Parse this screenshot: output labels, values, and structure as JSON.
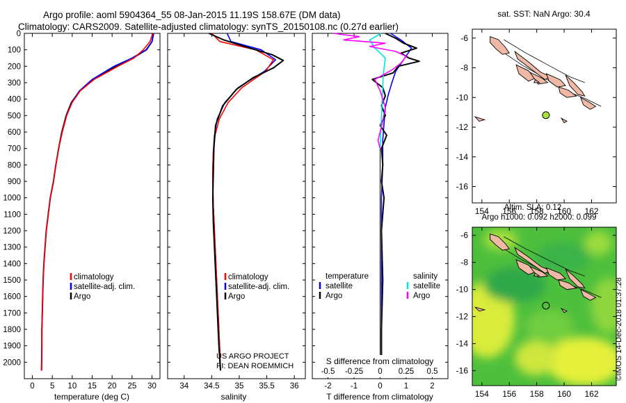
{
  "title_line1": "Argo profile: aoml 5904364_55 08-Jan-2015 11.19S 158.67E (DM data)",
  "title_line2": "Climatology: CARS2009. Satellite-adjusted climatology: synTS_20150108.nc (0.27d earlier)",
  "watermark": "©IMOS 14-Dec-2018 01:37:28",
  "credit_line1": "US ARGO PROJECT",
  "credit_line2": "PI: DEAN ROEMMICH",
  "colors": {
    "argo": "#000000",
    "climatology": "#ff0000",
    "satellite": "#0000ff",
    "sal_satellite": "#00e5e5",
    "sal_argo": "#ff00ff",
    "land": "#f0b9a6",
    "dot": "#a5e33a"
  },
  "chart_data": [
    {
      "id": "temperature",
      "type": "line",
      "xlabel": "temperature (deg C)",
      "ylabel": "",
      "xlim": [
        -2,
        32
      ],
      "ylim": [
        2100,
        0
      ],
      "xticks": [
        0,
        5,
        10,
        15,
        20,
        25,
        30
      ],
      "xtick_labels": [
        "0",
        "5",
        "10",
        "15",
        "20",
        "25",
        "30"
      ],
      "yticks": [
        0,
        100,
        200,
        300,
        400,
        500,
        600,
        700,
        800,
        900,
        1000,
        1100,
        1200,
        1300,
        1400,
        1500,
        1600,
        1700,
        1800,
        1900,
        2000
      ],
      "ytick_labels": [
        "0",
        "100",
        "200",
        "300",
        "400",
        "500",
        "600",
        "700",
        "800",
        "900",
        "1000",
        "1100",
        "1200",
        "1300",
        "1400",
        "1500",
        "1600",
        "1700",
        "1800",
        "1900",
        "2000"
      ],
      "legend": [
        "climatology",
        "satellite-adj. clim.",
        "Argo"
      ],
      "series": [
        {
          "name": "climatology",
          "color": "#ff0000",
          "x": [
            30.2,
            29.5,
            27.8,
            25.5,
            21.5,
            15.5,
            12.0,
            10.0,
            8.6,
            7.5,
            6.6,
            5.9,
            5.3,
            4.5,
            4.0,
            3.5,
            3.2,
            2.9,
            2.7,
            2.6,
            2.5,
            2.4,
            2.4,
            2.3
          ],
          "y": [
            0,
            50,
            100,
            150,
            200,
            280,
            350,
            420,
            500,
            600,
            700,
            800,
            900,
            1000,
            1100,
            1200,
            1300,
            1400,
            1500,
            1600,
            1700,
            1800,
            1900,
            2050
          ]
        },
        {
          "name": "satellite-adj. clim.",
          "color": "#0000ff",
          "x": [
            30.4,
            30.0,
            28.5,
            25.0,
            20.5,
            15.0,
            11.8,
            9.9,
            8.6,
            7.5,
            6.6,
            5.9,
            5.3,
            4.5,
            4.0,
            3.5,
            3.2,
            2.9,
            2.7,
            2.6,
            2.5,
            2.4,
            2.4,
            2.3
          ],
          "y": [
            0,
            50,
            100,
            150,
            200,
            280,
            350,
            420,
            500,
            600,
            700,
            800,
            900,
            1000,
            1100,
            1200,
            1300,
            1400,
            1500,
            1600,
            1700,
            1800,
            1900,
            2050
          ]
        },
        {
          "name": "Argo",
          "color": "#000000",
          "x": [
            30.4,
            30.0,
            28.6,
            25.2,
            21.0,
            15.3,
            11.9,
            9.8,
            8.5,
            7.4,
            6.6,
            5.9,
            5.3,
            4.5,
            4.0,
            3.5,
            3.2,
            2.9,
            2.7,
            2.6,
            2.5,
            2.4,
            2.4,
            2.3
          ],
          "y": [
            0,
            50,
            100,
            150,
            200,
            280,
            350,
            420,
            500,
            600,
            700,
            800,
            900,
            1000,
            1100,
            1200,
            1300,
            1400,
            1500,
            1600,
            1700,
            1800,
            1900,
            2050
          ]
        }
      ]
    },
    {
      "id": "salinity",
      "type": "line",
      "xlabel": "salinity",
      "ylabel": "",
      "xlim": [
        33.7,
        36.2
      ],
      "ylim": [
        2100,
        0
      ],
      "xticks": [
        34,
        34.5,
        35,
        35.5,
        36
      ],
      "xtick_labels": [
        "34",
        "34.5",
        "35",
        "35.5",
        "36"
      ],
      "legend": [
        "climatology",
        "satellite-adj. clim.",
        "Argo"
      ],
      "series": [
        {
          "name": "climatology",
          "color": "#ff0000",
          "x": [
            34.5,
            34.65,
            35.3,
            35.62,
            35.48,
            35.05,
            34.8,
            34.64,
            34.56,
            34.53,
            34.52,
            34.52,
            34.53,
            34.55,
            34.57,
            34.59,
            34.61,
            34.63,
            34.65,
            34.66
          ],
          "y": [
            0,
            50,
            100,
            160,
            230,
            330,
            420,
            520,
            620,
            720,
            820,
            920,
            1050,
            1200,
            1350,
            1500,
            1650,
            1800,
            1950,
            2050
          ]
        },
        {
          "name": "satellite-adj. clim.",
          "color": "#0000ff",
          "x": [
            34.78,
            34.85,
            35.4,
            35.66,
            35.46,
            34.98,
            34.74,
            34.6,
            34.55,
            34.53,
            34.52,
            34.52,
            34.53,
            34.55,
            34.57,
            34.59,
            34.61,
            34.63,
            34.65,
            34.66
          ],
          "y": [
            0,
            50,
            100,
            160,
            230,
            330,
            420,
            520,
            620,
            720,
            820,
            920,
            1050,
            1200,
            1350,
            1500,
            1650,
            1800,
            1950,
            2050
          ]
        },
        {
          "name": "Argo",
          "color": "#000000",
          "x": [
            34.45,
            34.72,
            35.2,
            35.6,
            35.8,
            35.62,
            35.25,
            34.95,
            34.7,
            34.57,
            34.54,
            34.53,
            34.52,
            34.53,
            34.55,
            34.57,
            34.59,
            34.61,
            34.63,
            34.65,
            34.66
          ],
          "y": [
            0,
            40,
            90,
            130,
            165,
            210,
            270,
            340,
            440,
            560,
            700,
            850,
            1000,
            1150,
            1300,
            1450,
            1600,
            1750,
            1900,
            2000,
            2050
          ]
        }
      ]
    },
    {
      "id": "difference",
      "type": "line",
      "xlabel": "T difference from climatology",
      "xlim": [
        -2.6,
        2.6
      ],
      "ylim": [
        2100,
        0
      ],
      "xticks": [
        -2,
        -1,
        0,
        1,
        2
      ],
      "xtick_labels": [
        "-2",
        "-1",
        "0",
        "1",
        "2"
      ],
      "top_axis_label": "S difference from climatology",
      "stick_values": [
        -0.5,
        -0.25,
        0,
        0.25,
        0.5
      ],
      "stick_labels": [
        "-0.5",
        "-0.25",
        "0",
        "0.25",
        "0.5"
      ],
      "legend_left_title": "temperature",
      "legend_right_title": "salinity",
      "legend_left": [
        "satellite",
        "Argo"
      ],
      "legend_right": [
        "satellite",
        "Argo"
      ],
      "series": [
        {
          "name": "T satellite",
          "color": "#0000ff",
          "x": [
            0.4,
            0.8,
            1.2,
            0.9,
            0.6,
            0.45,
            0.3,
            0.2,
            0.15,
            0.1,
            0.1,
            0.05,
            0.05,
            0.05,
            0.05,
            0.05
          ],
          "y": [
            0,
            40,
            90,
            160,
            230,
            300,
            380,
            450,
            550,
            650,
            800,
            1000,
            1300,
            1600,
            1900,
            2050
          ]
        },
        {
          "name": "T Argo",
          "color": "#000000",
          "x": [
            0.2,
            0.6,
            0.9,
            1.4,
            0.8,
            1.1,
            1.5,
            0.7,
            0.5,
            -0.3,
            0.1,
            0.2,
            0.05,
            0.2,
            0.0,
            0.25,
            0.05,
            0.1,
            0.05,
            0.15,
            0.05,
            0.1,
            0.05,
            0.05
          ],
          "y": [
            0,
            30,
            60,
            90,
            120,
            150,
            170,
            200,
            240,
            280,
            330,
            380,
            440,
            500,
            560,
            620,
            700,
            800,
            900,
            1000,
            1200,
            1500,
            1800,
            2050
          ]
        },
        {
          "name": "S satellite",
          "color": "#00e5e5",
          "x": [
            0.01,
            -0.1,
            -0.05,
            0.05,
            0.03,
            0.02,
            0.01,
            0.0
          ],
          "y": [
            0,
            40,
            90,
            150,
            250,
            400,
            550,
            700
          ]
        },
        {
          "name": "S Argo",
          "color": "#ff00ff",
          "x": [
            -0.45,
            -0.2,
            -0.35,
            0.05,
            -0.1,
            0.15,
            0.25,
            0.2,
            0.12,
            -0.05,
            0.0,
            0.05,
            0.02,
            -0.02,
            0.0
          ],
          "y": [
            0,
            20,
            40,
            60,
            80,
            110,
            140,
            180,
            220,
            280,
            350,
            450,
            550,
            650,
            700
          ]
        }
      ]
    },
    {
      "id": "sst_map",
      "type": "map",
      "title": "sat. SST: NaN Argo: 30.4",
      "xlim": [
        153.3,
        163.8
      ],
      "ylim": [
        -17.1,
        -5.4
      ],
      "xticks": [
        154,
        156,
        158,
        160,
        162
      ],
      "xtick_labels": [
        "154",
        "156",
        "158",
        "160",
        "162"
      ],
      "yticks": [
        -6,
        -8,
        -10,
        -12,
        -14,
        -16
      ],
      "ytick_labels": [
        "-6",
        "-8",
        "-10",
        "-12",
        "-14",
        "-16"
      ],
      "argo_position": [
        158.67,
        -11.19
      ]
    },
    {
      "id": "sla_map",
      "type": "map",
      "title_line1": "Altim. SLA: 0.12",
      "title_line2": "Argo h1000: 0.092 h2000: 0.099",
      "xlim": [
        153.3,
        163.8
      ],
      "ylim": [
        -17.1,
        -5.4
      ],
      "xticks": [
        154,
        156,
        158,
        160,
        162
      ],
      "xtick_labels": [
        "154",
        "156",
        "158",
        "160",
        "162"
      ],
      "yticks": [
        -6,
        -8,
        -10,
        -12,
        -14,
        -16
      ],
      "ytick_labels": [
        "-6",
        "-8",
        "-10",
        "-12",
        "-14",
        "-16"
      ],
      "argo_position": [
        158.67,
        -11.19
      ]
    }
  ]
}
